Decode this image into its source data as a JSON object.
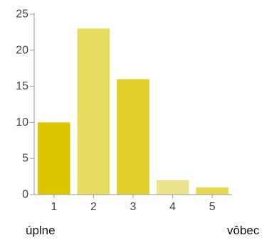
{
  "chart_data": {
    "type": "bar",
    "categories": [
      "1",
      "2",
      "3",
      "4",
      "5"
    ],
    "values": [
      10,
      23,
      16,
      2,
      1
    ],
    "ylim": [
      0,
      25
    ],
    "yticks": [
      "0",
      "5",
      "10",
      "15",
      "20",
      "25"
    ],
    "grid": false,
    "legend": "none",
    "bar_colors": [
      "#dcc600",
      "#e8dc60",
      "#e3cf2a",
      "#ede38c",
      "#e9d84f"
    ],
    "axis_color": "#999999"
  },
  "scale_labels": {
    "left": "úplne",
    "right": "vôbec"
  }
}
